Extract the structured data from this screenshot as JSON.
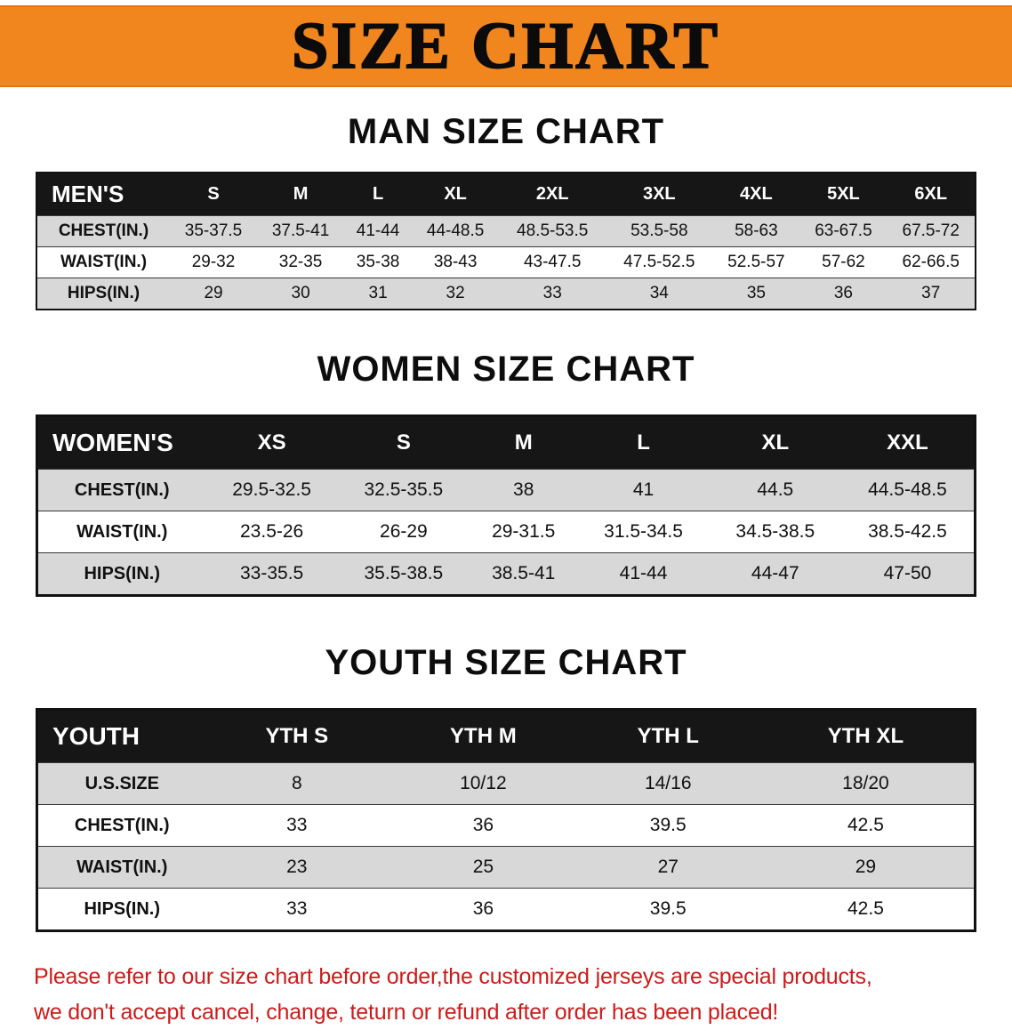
{
  "banner": {
    "title": "SIZE CHART"
  },
  "colors": {
    "banner_bg": "#f1861f",
    "table_header_bg": "#161616",
    "stripe_row": "#d8d8d8",
    "disclaimer_text": "#cc1b1b"
  },
  "sections": [
    {
      "id": "men",
      "heading": "MAN SIZE CHART",
      "table": {
        "header": [
          "MEN'S",
          "S",
          "M",
          "L",
          "XL",
          "2XL",
          "3XL",
          "4XL",
          "5XL",
          "6XL"
        ],
        "rows": [
          [
            "CHEST(IN.)",
            "35-37.5",
            "37.5-41",
            "41-44",
            "44-48.5",
            "48.5-53.5",
            "53.5-58",
            "58-63",
            "63-67.5",
            "67.5-72"
          ],
          [
            "WAIST(IN.)",
            "29-32",
            "32-35",
            "35-38",
            "38-43",
            "43-47.5",
            "47.5-52.5",
            "52.5-57",
            "57-62",
            "62-66.5"
          ],
          [
            "HIPS(IN.)",
            "29",
            "30",
            "31",
            "32",
            "33",
            "34",
            "35",
            "36",
            "37"
          ]
        ]
      }
    },
    {
      "id": "women",
      "heading": "WOMEN SIZE CHART",
      "table": {
        "header": [
          "WOMEN'S",
          "XS",
          "S",
          "M",
          "L",
          "XL",
          "XXL"
        ],
        "rows": [
          [
            "CHEST(IN.)",
            "29.5-32.5",
            "32.5-35.5",
            "38",
            "41",
            "44.5",
            "44.5-48.5"
          ],
          [
            "WAIST(IN.)",
            "23.5-26",
            "26-29",
            "29-31.5",
            "31.5-34.5",
            "34.5-38.5",
            "38.5-42.5"
          ],
          [
            "HIPS(IN.)",
            "33-35.5",
            "35.5-38.5",
            "38.5-41",
            "41-44",
            "44-47",
            "47-50"
          ]
        ]
      }
    },
    {
      "id": "youth",
      "heading": "YOUTH SIZE CHART",
      "table": {
        "header": [
          "YOUTH",
          "YTH S",
          "YTH M",
          "YTH L",
          "YTH XL"
        ],
        "rows": [
          [
            "U.S.SIZE",
            "8",
            "10/12",
            "14/16",
            "18/20"
          ],
          [
            "CHEST(IN.)",
            "33",
            "36",
            "39.5",
            "42.5"
          ],
          [
            "WAIST(IN.)",
            "23",
            "25",
            "27",
            "29"
          ],
          [
            "HIPS(IN.)",
            "33",
            "36",
            "39.5",
            "42.5"
          ]
        ]
      }
    }
  ],
  "disclaimer": {
    "line1": "Please refer to our size chart before order,the customized jerseys are special products,",
    "line2": "we don't accept cancel, change, teturn or refund after order has been placed!"
  }
}
